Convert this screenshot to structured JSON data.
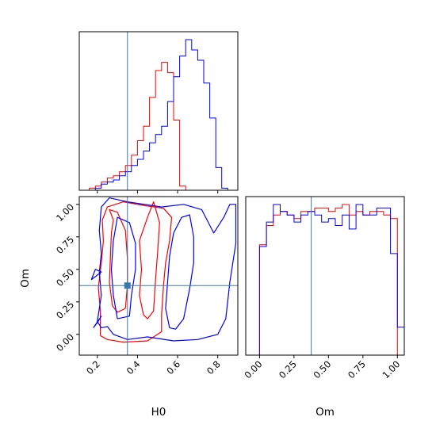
{
  "chart_data": {
    "type": "corner",
    "parameters": [
      "H0",
      "Om"
    ],
    "truth": {
      "H0": 0.35,
      "Om": 0.375
    },
    "colors": {
      "truth": "#3b78b0",
      "series_a": "#ff0000",
      "series_b": "#0000ff",
      "axes": "#000000"
    },
    "panels": [
      {
        "id": "hist-H0",
        "type": "histogram",
        "x_range": [
          0.11,
          0.9
        ],
        "xticks": [
          0.2,
          0.4,
          0.6,
          0.8
        ],
        "bin_edges": [
          0.13,
          0.16,
          0.19,
          0.22,
          0.25,
          0.28,
          0.31,
          0.34,
          0.37,
          0.4,
          0.43,
          0.46,
          0.49,
          0.52,
          0.55,
          0.58,
          0.61,
          0.64,
          0.67,
          0.7,
          0.73,
          0.76,
          0.79,
          0.82,
          0.85,
          0.88
        ],
        "series": [
          {
            "color_key": "series_a",
            "counts": [
              0,
              1,
              2,
              4,
              6,
              7,
              9,
              12,
              17,
              24,
              31,
              45,
              58,
              62,
              57,
              34,
              2,
              0,
              0,
              0,
              0,
              0,
              0,
              0,
              0
            ]
          },
          {
            "color_key": "series_b",
            "counts": [
              0,
              0,
              1,
              3,
              4,
              5,
              7,
              9,
              12,
              15,
              19,
              23,
              27,
              31,
              43,
              55,
              65,
              73,
              68,
              63,
              52,
              35,
              11,
              1,
              0
            ]
          }
        ]
      },
      {
        "id": "contour-H0-Om",
        "type": "contour",
        "x_range": [
          0.11,
          0.9
        ],
        "y_range": [
          -0.16,
          1.06
        ],
        "xticks": [
          0.2,
          0.4,
          0.6,
          0.8
        ],
        "yticks": [
          0.0,
          0.25,
          0.5,
          0.75,
          1.0
        ],
        "xlabel": "H0",
        "ylabel": "Om"
      },
      {
        "id": "hist-Om",
        "type": "histogram",
        "x_range": [
          -0.1,
          1.05
        ],
        "xticks": [
          0.0,
          0.25,
          0.5,
          0.75,
          1.0
        ],
        "xlabel": "Om",
        "bin_edges": [
          -0.05,
          0.0,
          0.05,
          0.1,
          0.15,
          0.2,
          0.25,
          0.3,
          0.35,
          0.4,
          0.45,
          0.5,
          0.55,
          0.6,
          0.65,
          0.7,
          0.75,
          0.8,
          0.85,
          0.9,
          0.95,
          1.0,
          1.05
        ],
        "series": [
          {
            "color_key": "series_a",
            "counts": [
              0,
              63,
              74,
              80,
              82,
              80,
              78,
              82,
              82,
              84,
              84,
              82,
              84,
              86,
              80,
              82,
              80,
              82,
              82,
              80,
              78,
              0
            ]
          },
          {
            "color_key": "series_b",
            "counts": [
              0,
              62,
              76,
              86,
              82,
              80,
              76,
              80,
              82,
              80,
              76,
              78,
              74,
              80,
              72,
              86,
              80,
              80,
              84,
              84,
              58,
              16
            ]
          }
        ]
      }
    ],
    "contours": {
      "series_a": [
        [
          [
            0.215,
            -0.01
          ],
          [
            0.215,
            0.18
          ],
          [
            0.205,
            0.36
          ],
          [
            0.22,
            0.55
          ],
          [
            0.23,
            0.72
          ],
          [
            0.225,
            0.88
          ],
          [
            0.25,
            0.98
          ],
          [
            0.33,
            1.02
          ],
          [
            0.44,
            0.99
          ],
          [
            0.53,
            0.97
          ],
          [
            0.57,
            0.9
          ],
          [
            0.56,
            0.72
          ],
          [
            0.54,
            0.55
          ],
          [
            0.53,
            0.38
          ],
          [
            0.52,
            0.15
          ],
          [
            0.52,
            0.02
          ],
          [
            0.45,
            -0.05
          ],
          [
            0.33,
            -0.06
          ],
          [
            0.25,
            -0.04
          ],
          [
            0.215,
            -0.01
          ]
        ],
        [
          [
            0.275,
            0.22
          ],
          [
            0.26,
            0.4
          ],
          [
            0.265,
            0.58
          ],
          [
            0.27,
            0.78
          ],
          [
            0.28,
            0.88
          ],
          [
            0.26,
            0.96
          ],
          [
            0.3,
            0.94
          ],
          [
            0.34,
            0.8
          ],
          [
            0.35,
            0.58
          ],
          [
            0.35,
            0.38
          ],
          [
            0.34,
            0.2
          ],
          [
            0.3,
            0.17
          ],
          [
            0.275,
            0.22
          ]
        ],
        [
          [
            0.43,
            0.15
          ],
          [
            0.41,
            0.3
          ],
          [
            0.42,
            0.5
          ],
          [
            0.41,
            0.72
          ],
          [
            0.45,
            0.9
          ],
          [
            0.48,
            1.02
          ],
          [
            0.51,
            0.86
          ],
          [
            0.5,
            0.62
          ],
          [
            0.49,
            0.42
          ],
          [
            0.48,
            0.18
          ],
          [
            0.45,
            0.12
          ],
          [
            0.43,
            0.15
          ]
        ]
      ],
      "series_b": [
        [
          [
            0.22,
            0.05
          ],
          [
            0.2,
            0.1
          ],
          [
            0.22,
            0.3
          ],
          [
            0.21,
            0.48
          ],
          [
            0.22,
            0.62
          ],
          [
            0.21,
            0.8
          ],
          [
            0.22,
            0.98
          ],
          [
            0.26,
            1.05
          ],
          [
            0.35,
            1.02
          ],
          [
            0.52,
            0.98
          ],
          [
            0.63,
            1.0
          ],
          [
            0.72,
            0.96
          ],
          [
            0.78,
            0.78
          ],
          [
            0.83,
            0.9
          ],
          [
            0.86,
            1.0
          ],
          [
            0.89,
            1.0
          ],
          [
            0.89,
            0.7
          ],
          [
            0.86,
            0.4
          ],
          [
            0.84,
            0.12
          ],
          [
            0.8,
            0.0
          ],
          [
            0.7,
            -0.04
          ],
          [
            0.58,
            -0.05
          ],
          [
            0.45,
            -0.02
          ],
          [
            0.35,
            -0.04
          ],
          [
            0.28,
            0.0
          ],
          [
            0.25,
            0.06
          ],
          [
            0.22,
            0.05
          ]
        ],
        [
          [
            0.3,
            0.12
          ],
          [
            0.28,
            0.3
          ],
          [
            0.27,
            0.5
          ],
          [
            0.28,
            0.72
          ],
          [
            0.3,
            0.9
          ],
          [
            0.36,
            0.86
          ],
          [
            0.39,
            0.7
          ],
          [
            0.39,
            0.5
          ],
          [
            0.37,
            0.3
          ],
          [
            0.36,
            0.14
          ],
          [
            0.3,
            0.12
          ]
        ],
        [
          [
            0.56,
            0.05
          ],
          [
            0.54,
            0.2
          ],
          [
            0.55,
            0.4
          ],
          [
            0.56,
            0.6
          ],
          [
            0.58,
            0.78
          ],
          [
            0.62,
            0.9
          ],
          [
            0.66,
            0.92
          ],
          [
            0.68,
            0.75
          ],
          [
            0.68,
            0.55
          ],
          [
            0.66,
            0.35
          ],
          [
            0.63,
            0.12
          ],
          [
            0.59,
            0.04
          ],
          [
            0.56,
            0.05
          ]
        ],
        [
          [
            0.17,
            0.42
          ],
          [
            0.22,
            0.48
          ],
          [
            0.19,
            0.5
          ],
          [
            0.17,
            0.42
          ]
        ],
        [
          [
            0.18,
            0.05
          ],
          [
            0.22,
            0.14
          ],
          [
            0.2,
            0.09
          ],
          [
            0.18,
            0.05
          ]
        ]
      ]
    }
  }
}
